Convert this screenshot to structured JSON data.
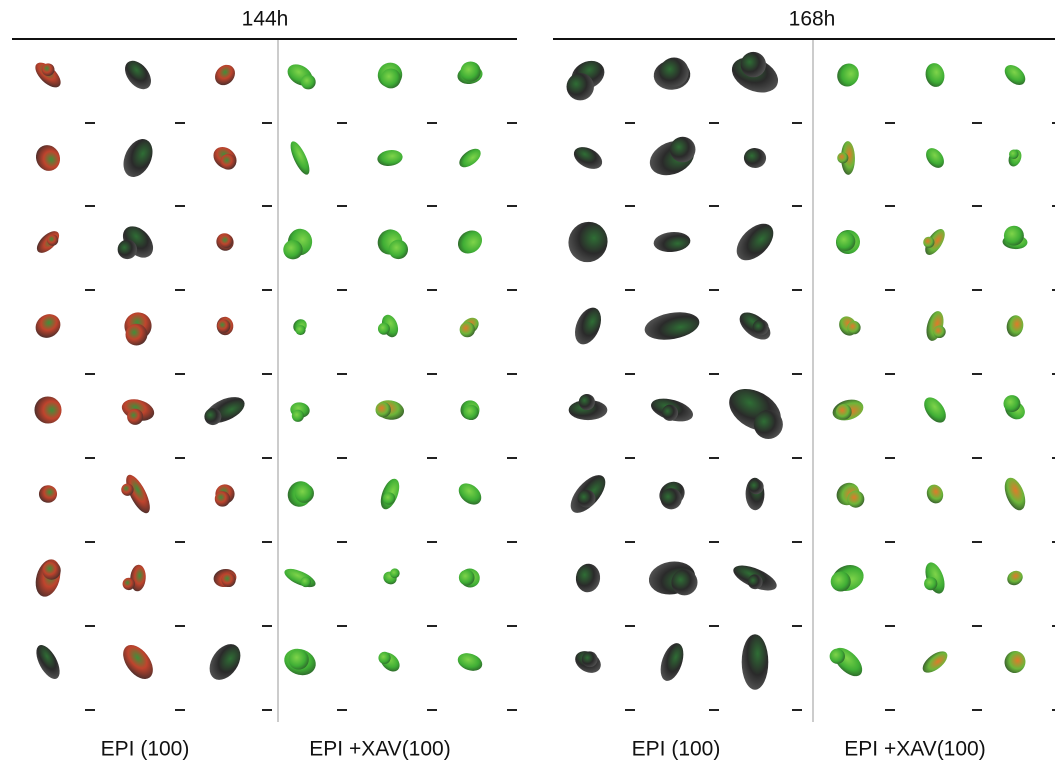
{
  "panels": [
    {
      "title": "144h",
      "groups": [
        "EPI (100)",
        "EPI +XAV(100)"
      ]
    },
    {
      "title": "168h",
      "groups": [
        "EPI (100)",
        "EPI +XAV(100)"
      ]
    }
  ]
}
